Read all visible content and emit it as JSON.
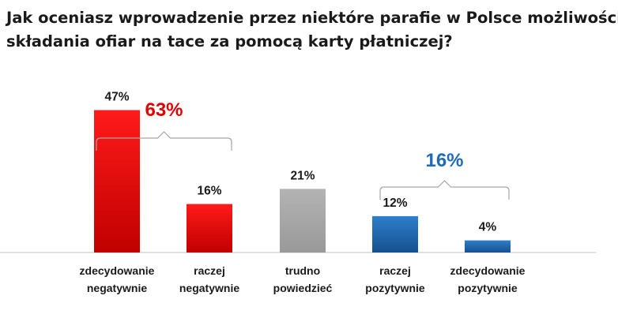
{
  "chart_data": {
    "type": "bar",
    "title_lines": [
      "Jak oceniasz wprowadzenie przez niektóre parafie w Polsce możliwości",
      "składania ofiar na tace za pomocą karty płatniczej?"
    ],
    "categories": [
      [
        "zdecydowanie",
        "negatywnie"
      ],
      [
        "raczej",
        "negatywnie"
      ],
      [
        "trudno",
        "powiedzieć"
      ],
      [
        "raczej",
        "pozytywnie"
      ],
      [
        "zdecydowanie",
        "pozytywnie"
      ]
    ],
    "values": [
      47,
      16,
      21,
      12,
      4
    ],
    "value_labels": [
      "47%",
      "16%",
      "21%",
      "12%",
      "4%"
    ],
    "unit": "%",
    "ylim": [
      0,
      50
    ],
    "grid": false,
    "colors": [
      "#e00000",
      "#e00000",
      "#a6a6a6",
      "#1f6bb5",
      "#1f6bb5"
    ],
    "groups": [
      {
        "name": "negative",
        "members": [
          0,
          1
        ],
        "total_label": "63%",
        "color": "#e00000"
      },
      {
        "name": "positive",
        "members": [
          3,
          4
        ],
        "total_label": "16%",
        "color": "#1f6bb5"
      }
    ],
    "bracket_color": "#a6a6a6",
    "axis_color": "#bfbfbf",
    "label_color": "#1a1a1a"
  }
}
